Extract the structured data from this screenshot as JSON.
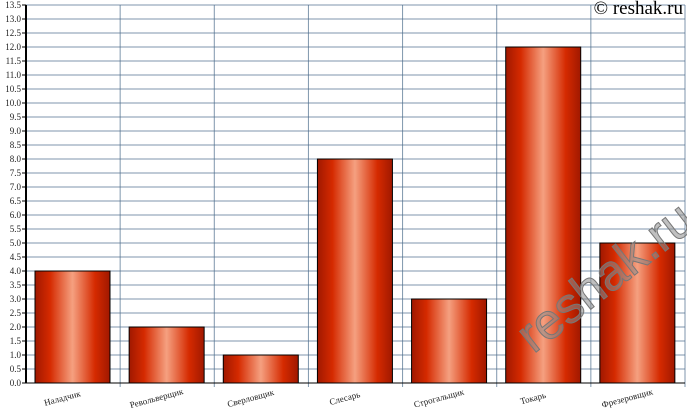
{
  "watermark": "© reshak.ru",
  "watermark_diagonal": "reshak.ru",
  "chart_data": {
    "type": "bar",
    "categories": [
      "Наладчик",
      "Револьверщик",
      "Сверловщик",
      "Слесарь",
      "Строгальщик",
      "Токарь",
      "Фрезеровщик"
    ],
    "values": [
      4,
      2,
      1,
      8,
      3,
      12,
      5
    ],
    "ylim": [
      0,
      13.5
    ],
    "ytick_step": 0.5,
    "grid": true,
    "bar_color": "#d52a00",
    "bar_highlight": "#f5a080",
    "grid_color": "#4a6a8a"
  }
}
